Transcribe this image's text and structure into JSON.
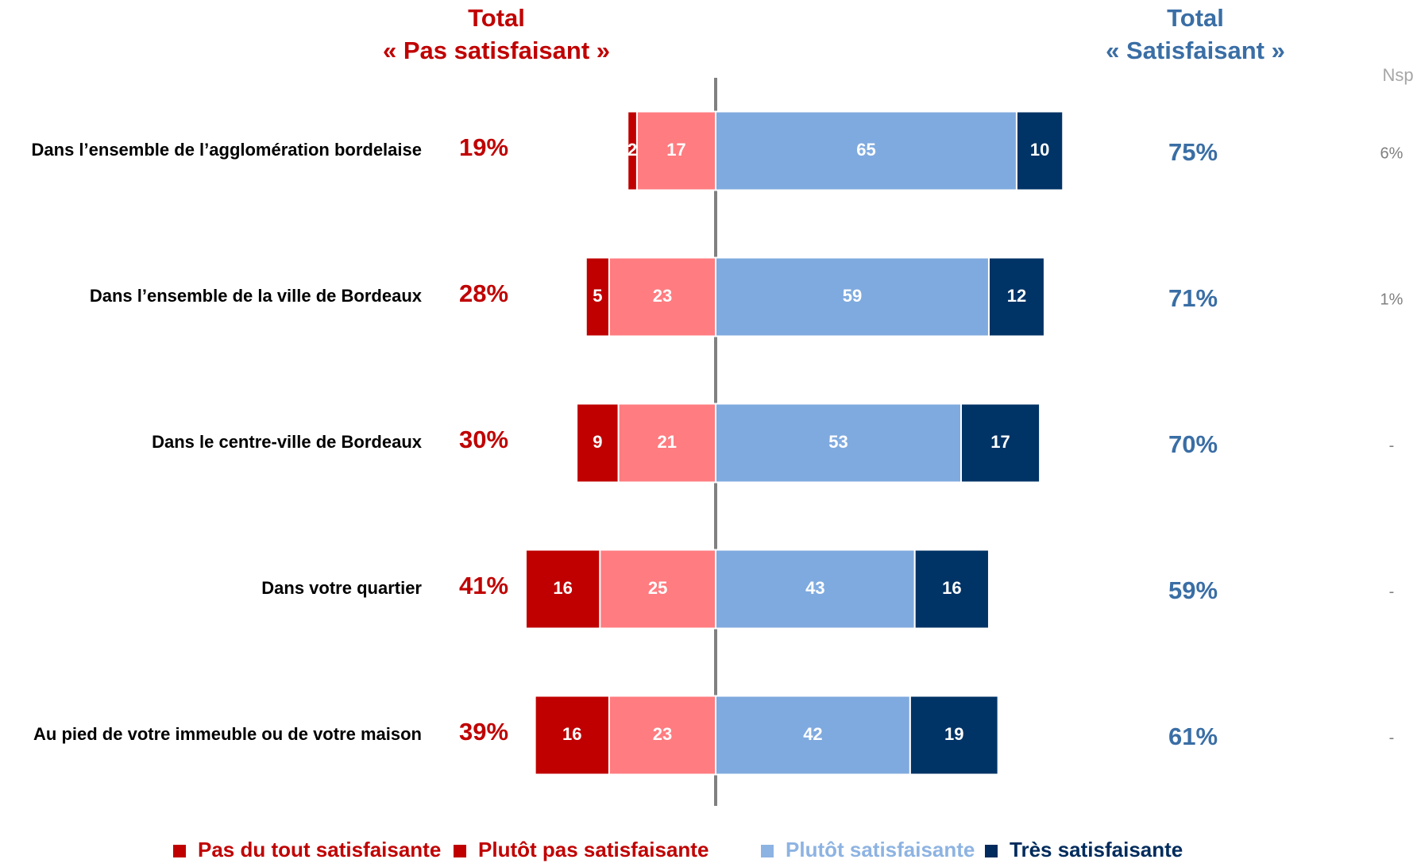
{
  "chart_data": {
    "type": "diverging_bar",
    "header_negative": [
      "Total",
      "« Pas satisfaisant »"
    ],
    "header_positive": [
      "Total",
      "« Satisfaisant »"
    ],
    "header_nsp": "Nsp",
    "categories": [
      "Dans l’ensemble de l’agglomération bordelaise",
      "Dans l’ensemble de la ville de Bordeaux",
      "Dans le centre-ville de Bordeaux",
      "Dans votre quartier",
      "Au pied de votre immeuble ou de votre maison"
    ],
    "series": [
      {
        "name": "Pas du tout satisfaisante",
        "color": "#c00000",
        "legend_color": "#c00000",
        "side": "negative",
        "values": [
          2,
          5,
          9,
          16,
          16
        ]
      },
      {
        "name": "Plutôt pas satisfaisante",
        "color": "#ff7c80",
        "legend_color": "#c00000",
        "side": "negative",
        "values": [
          17,
          23,
          21,
          25,
          23
        ]
      },
      {
        "name": "Plutôt satisfaisante",
        "color": "#7faadf",
        "legend_color": "#8db3e2",
        "side": "positive",
        "values": [
          65,
          59,
          53,
          43,
          42
        ]
      },
      {
        "name": "Très satisfaisante",
        "color": "#003366",
        "legend_color": "#002b5c",
        "side": "positive",
        "values": [
          10,
          12,
          17,
          16,
          19
        ]
      }
    ],
    "total_negative": {
      "color": "#c00000",
      "values": [
        19,
        28,
        30,
        41,
        39
      ],
      "value_labels": [
        "19%",
        "28%",
        "30%",
        "41%",
        "39%"
      ]
    },
    "total_positive": {
      "color": "#3a6ea5",
      "values": [
        75,
        71,
        70,
        59,
        61
      ],
      "value_labels": [
        "75%",
        "71%",
        "70%",
        "59%",
        "61%"
      ]
    },
    "nsp": {
      "color": "#7f7f7f",
      "values": [
        6,
        1,
        null,
        null,
        null
      ],
      "value_labels": [
        "6%",
        "1%",
        "-",
        "-",
        "-"
      ]
    }
  }
}
